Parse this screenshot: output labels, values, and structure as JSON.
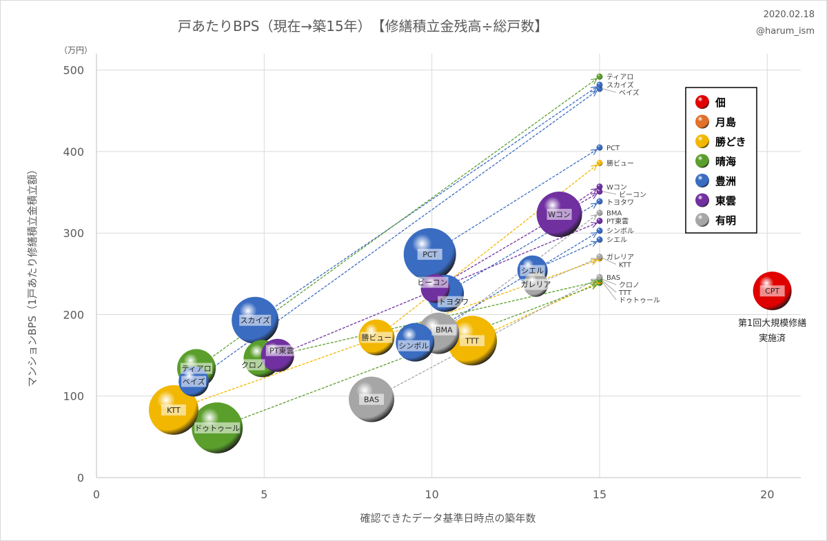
{
  "header": {
    "title": "戸あたりBPS（現在→築15年）　【修繕積立金残高÷総戸数】",
    "date": "2020.02.18",
    "author": "@harum_ism"
  },
  "chart_data": {
    "type": "bubble",
    "title": "戸あたりBPS（現在→築15年）　【修繕積立金残高÷総戸数】",
    "xlabel": "確認できたデータ基準日時点の築年数",
    "ylabel": "マンションBPS（1戸あたり修繕積立金積立額）",
    "yunit": "（万円）",
    "xlim": [
      0,
      21
    ],
    "ylim": [
      0,
      520
    ],
    "xticks": [
      0,
      5,
      10,
      15,
      20
    ],
    "yticks": [
      0,
      100,
      200,
      300,
      400,
      500
    ],
    "grid": true,
    "legend_position": "top-right",
    "legend": [
      {
        "name": "佃",
        "color": "#e00000"
      },
      {
        "name": "月島",
        "color": "#e0702a"
      },
      {
        "name": "勝どき",
        "color": "#f2b700"
      },
      {
        "name": "晴海",
        "color": "#5a9e2c"
      },
      {
        "name": "豊洲",
        "color": "#3a6cc2"
      },
      {
        "name": "東雲",
        "color": "#7030a0"
      },
      {
        "name": "有明",
        "color": "#a6a6a6"
      }
    ],
    "projection_age": 15,
    "points": [
      {
        "name": "CPT",
        "area": "佃",
        "x": 20.15,
        "y": 229,
        "size": 28,
        "target": null
      },
      {
        "name": "PCT",
        "area": "豊洲",
        "x": 9.94,
        "y": 274,
        "size": 38,
        "target": 405
      },
      {
        "name": "Wコン",
        "area": "東雲",
        "x": 13.8,
        "y": 323,
        "size": 33,
        "target": 357
      },
      {
        "name": "スカイズ",
        "area": "豊洲",
        "x": 4.73,
        "y": 193,
        "size": 34,
        "target": 482
      },
      {
        "name": "シエル",
        "area": "豊洲",
        "x": 13.0,
        "y": 254,
        "size": 22,
        "target": 292
      },
      {
        "name": "ガレリア",
        "area": "有明",
        "x": 13.1,
        "y": 237,
        "size": 18,
        "target": 271
      },
      {
        "name": "トヨタワ",
        "area": "豊洲",
        "x": 10.4,
        "y": 226,
        "size": 27,
        "target": 339
      },
      {
        "name": "ビーコン",
        "area": "東雲",
        "x": 10.1,
        "y": 232,
        "size": 21,
        "target": 351
      },
      {
        "name": "BMA",
        "area": "有明",
        "x": 10.2,
        "y": 177,
        "size": 30,
        "target": 325
      },
      {
        "name": "TTT",
        "area": "勝どき",
        "x": 11.2,
        "y": 168,
        "size": 36,
        "target": 241
      },
      {
        "name": "勝ビュー",
        "area": "勝どき",
        "x": 8.35,
        "y": 172,
        "size": 26,
        "target": 386
      },
      {
        "name": "シンボル",
        "area": "豊洲",
        "x": 9.5,
        "y": 166,
        "size": 28,
        "target": 303
      },
      {
        "name": "BAS",
        "area": "有明",
        "x": 8.2,
        "y": 96,
        "size": 33,
        "target": 246
      },
      {
        "name": "クロノ",
        "area": "晴海",
        "x": 4.94,
        "y": 146,
        "size": 27,
        "target": 243
      },
      {
        "name": "PT東雲",
        "area": "東雲",
        "x": 5.4,
        "y": 150,
        "size": 24,
        "target": 315
      },
      {
        "name": "ティアロ",
        "area": "晴海",
        "x": 2.98,
        "y": 134,
        "size": 28,
        "target": 492
      },
      {
        "name": "ベイズ",
        "area": "豊洲",
        "x": 2.9,
        "y": 118,
        "size": 22,
        "target": 477
      },
      {
        "name": "KTT",
        "area": "勝どき",
        "x": 2.3,
        "y": 83,
        "size": 36,
        "target": 269
      },
      {
        "name": "ドゥトゥール",
        "area": "晴海",
        "x": 3.6,
        "y": 61,
        "size": 37,
        "target": 239
      }
    ],
    "annotations": [
      {
        "point": "CPT",
        "lines": [
          "第1回大規模修繕",
          "実施済"
        ]
      }
    ]
  }
}
